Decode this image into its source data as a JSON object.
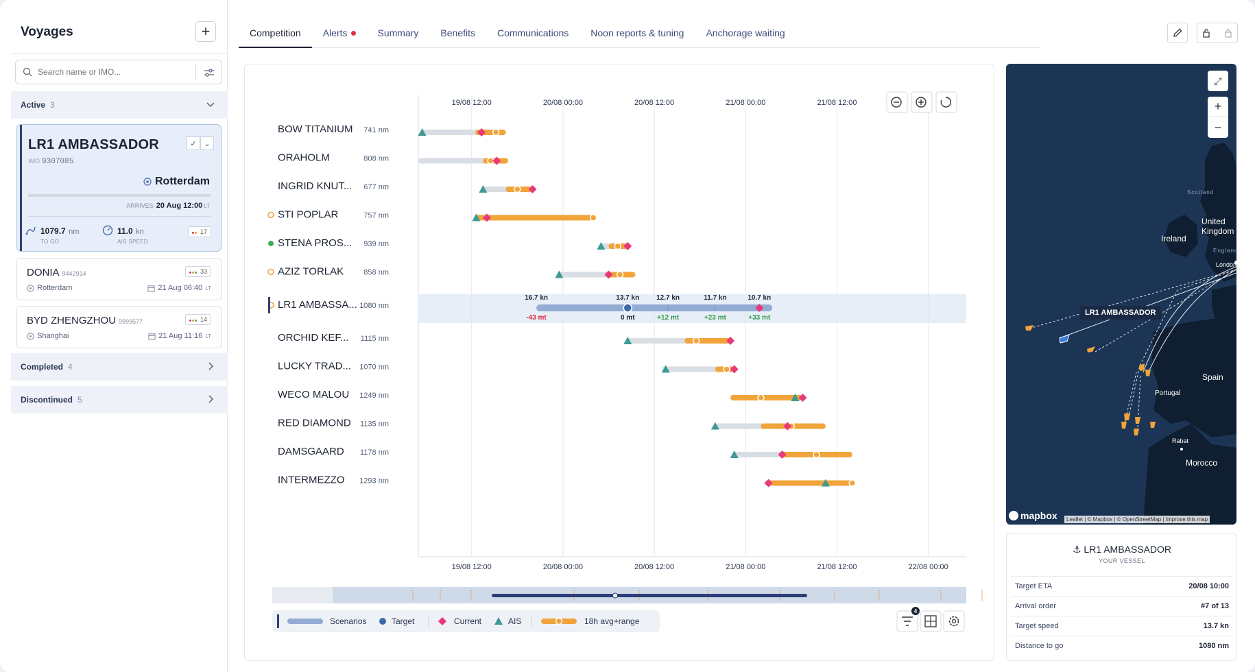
{
  "sidebar": {
    "title": "Voyages",
    "search_placeholder": "Search name or IMO...",
    "active": {
      "label": "Active",
      "count": "3"
    },
    "completed": {
      "label": "Completed",
      "count": "4"
    },
    "discontinued": {
      "label": "Discontinued",
      "count": "5"
    },
    "selected": {
      "name": "LR1 AMBASSADOR",
      "imo_label": "IMO",
      "imo": "9307085",
      "port": "Rotterdam",
      "arrives_label": "ARRIVES",
      "arrives": "20 Aug 12:00",
      "lt": "LT",
      "to_go_value": "1079.7",
      "to_go_unit": "nm",
      "to_go_label": "TO GO",
      "speed_value": "11.0",
      "speed_unit": "kn",
      "speed_label": "AIS SPEED",
      "badge": "17"
    },
    "voyages": [
      {
        "name": "DONIA",
        "imo": "9442914",
        "port": "Rotterdam",
        "eta": "21 Aug 06:40",
        "lt": "LT",
        "badge": "33"
      },
      {
        "name": "BYD ZHENGZHOU",
        "imo": "9999577",
        "port": "Shanghai",
        "eta": "21 Aug 11:16",
        "lt": "LT",
        "badge": "14"
      }
    ]
  },
  "tabs": [
    {
      "label": "Competition",
      "active": true
    },
    {
      "label": "Alerts",
      "dot": true
    },
    {
      "label": "Summary"
    },
    {
      "label": "Benefits"
    },
    {
      "label": "Communications"
    },
    {
      "label": "Noon reports & tuning"
    },
    {
      "label": "Anchorage waiting"
    }
  ],
  "timeline": {
    "ticks": [
      "19/08 12:00",
      "20/08 00:00",
      "20/08 12:00",
      "21/08 00:00",
      "21/08 12:00",
      "22/08 00:00"
    ],
    "vessels": [
      {
        "name": "BOW TITANIUM",
        "dist": "741 nm"
      },
      {
        "name": "ORAHOLM",
        "dist": "808 nm"
      },
      {
        "name": "INGRID KNUT...",
        "dist": "677 nm"
      },
      {
        "name": "STI POPLAR",
        "dist": "757 nm",
        "icon": "bell"
      },
      {
        "name": "STENA PROS...",
        "dist": "939 nm",
        "icon": "sun"
      },
      {
        "name": "AZIZ TORLAK",
        "dist": "858 nm",
        "icon": "bell"
      },
      {
        "name": "LR1 AMBASSA...",
        "dist": "1080 nm",
        "icon": "bell",
        "selected": true
      },
      {
        "name": "ORCHID KEF...",
        "dist": "1115 nm"
      },
      {
        "name": "LUCKY TRAD...",
        "dist": "1070 nm"
      },
      {
        "name": "WECO MALOU",
        "dist": "1249 nm"
      },
      {
        "name": "RED DIAMOND",
        "dist": "1135 nm"
      },
      {
        "name": "DAMSGAARD",
        "dist": "1178 nm"
      },
      {
        "name": "INTERMEZZO",
        "dist": "1293 nm"
      }
    ],
    "scenarios": [
      {
        "speed": "16.7 kn",
        "delta": "-43 mt"
      },
      {
        "speed": "13.7 kn",
        "delta": "0 mt"
      },
      {
        "speed": "12.7 kn",
        "delta": "+12 mt"
      },
      {
        "speed": "11.7 kn",
        "delta": "+23 mt"
      },
      {
        "speed": "10.7 kn",
        "delta": "+33 mt"
      }
    ],
    "legend": {
      "scenarios": "Scenarios",
      "target": "Target",
      "current": "Current",
      "ais": "AIS",
      "range": "18h avg+range"
    },
    "filter_count": "4"
  },
  "map": {
    "labels": [
      "Scotland",
      "United Kingdom",
      "Ireland",
      "England",
      "London",
      "Spain",
      "Portugal",
      "Rabat",
      "Morocco"
    ],
    "vessel_label": "LR1 AMBASSADOR",
    "brand": "mapbox",
    "attribution": "Leaflet | © Mapbox | © OpenStreetMap | Improve this map"
  },
  "info": {
    "title": "LR1 AMBASSADOR",
    "subtitle": "YOUR VESSEL",
    "rows": [
      {
        "label": "Target ETA",
        "value": "20/08 10:00"
      },
      {
        "label": "Arrival order",
        "value": "#7 of 13"
      },
      {
        "label": "Target speed",
        "value": "13.7 kn"
      },
      {
        "label": "Distance to go",
        "value": "1080 nm"
      }
    ]
  },
  "colors": {
    "accent": "#2d3f78",
    "current": "#e8397d",
    "ais": "#3d9a94",
    "range": "#f0a43a",
    "scenario": "#94acd4",
    "selected_row": "#e8eef8",
    "negative": "#d9283e",
    "positive": "#2e9c4a"
  }
}
